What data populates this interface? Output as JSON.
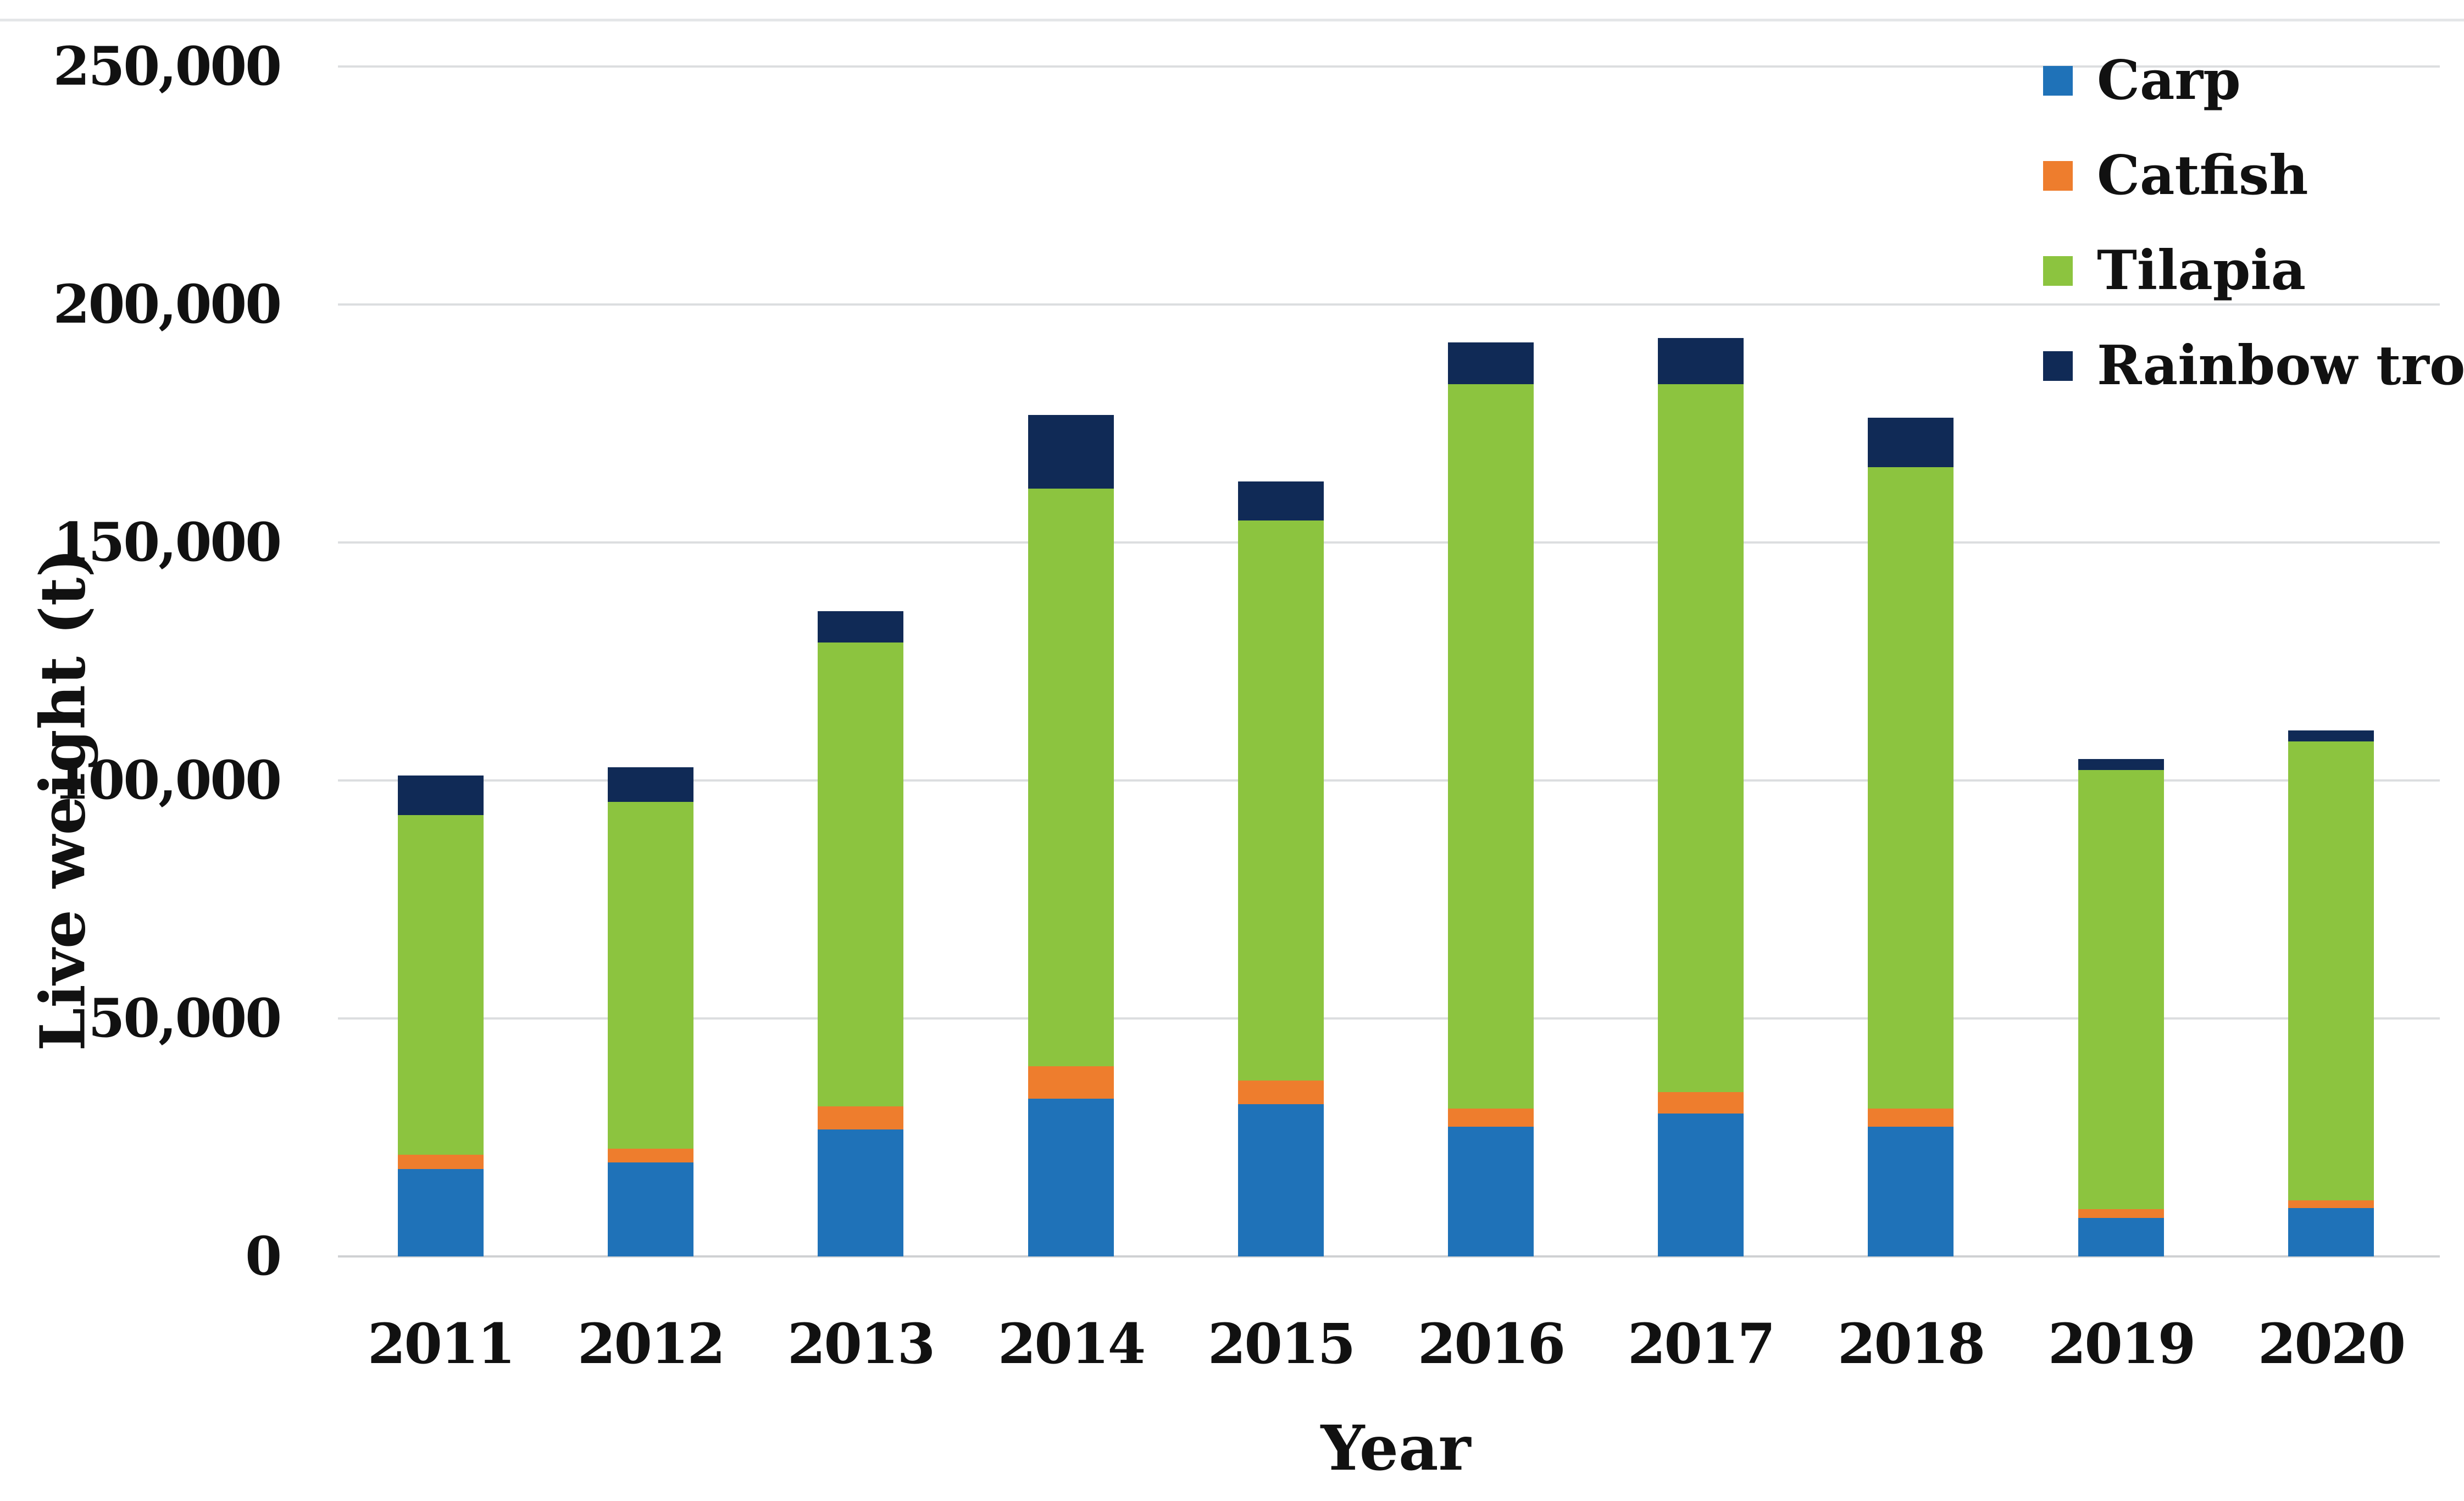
{
  "figure": {
    "background_color": "#ffffff",
    "text_color": "#111111",
    "gridline_color": "#dcdee0",
    "axis_line_color": "#cfd1d3"
  },
  "chart_data": {
    "type": "bar",
    "stacked": true,
    "title": "",
    "xlabel": "Year",
    "ylabel": "Live weight (t)",
    "categories": [
      "2011",
      "2012",
      "2013",
      "2014",
      "2015",
      "2016",
      "2017",
      "2018",
      "2019",
      "2020"
    ],
    "series": [
      {
        "name": "Carp",
        "color": "#1f72b8",
        "values": [
          18400,
          19800,
          26700,
          33100,
          32000,
          27200,
          30000,
          27200,
          8100,
          10200
        ]
      },
      {
        "name": "Catfish",
        "color": "#ee7d2d",
        "values": [
          3000,
          2900,
          4900,
          6800,
          5000,
          3800,
          4500,
          3800,
          1800,
          1600
        ]
      },
      {
        "name": "Tilapia",
        "color": "#8cc43f",
        "values": [
          71400,
          72900,
          97500,
          121400,
          117700,
          152200,
          148700,
          134700,
          92300,
          96400
        ]
      },
      {
        "name": "Rainbow trout",
        "color": "#102a56",
        "values": [
          8300,
          7300,
          6600,
          15500,
          8200,
          8800,
          9700,
          10400,
          2300,
          2300
        ]
      }
    ],
    "totals": [
      101100,
      102900,
      135700,
      176800,
      162900,
      192000,
      192900,
      176100,
      104500,
      110500
    ],
    "ylim": [
      0,
      250000
    ],
    "ytick_interval": 50000,
    "yticks": [
      "0",
      "50,000",
      "100,000",
      "150,000",
      "200,000",
      "250,000"
    ],
    "grid": true,
    "legend_position": "top-right"
  }
}
